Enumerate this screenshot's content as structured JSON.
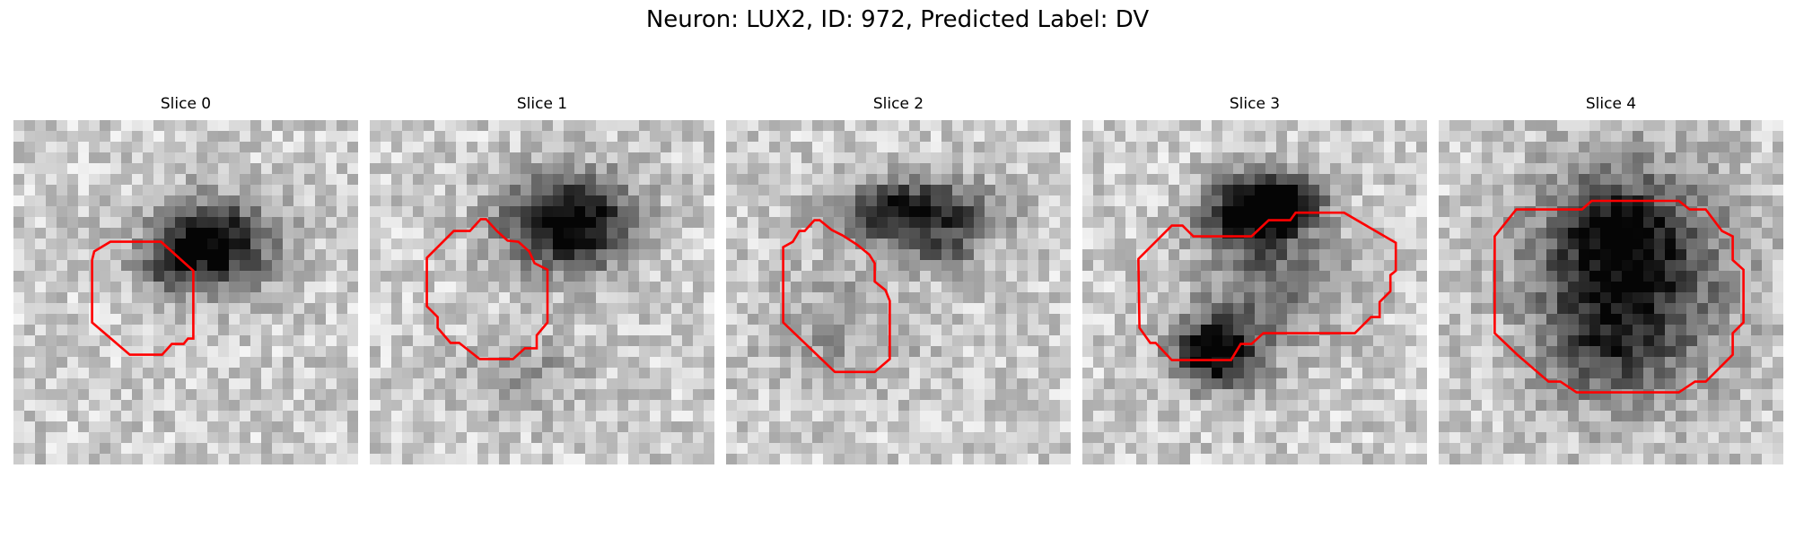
{
  "figure": {
    "title": "Neuron: LUX2, ID: 972, Predicted Label: DV"
  },
  "panels": [
    {
      "title": "Slice 0"
    },
    {
      "title": "Slice 1"
    },
    {
      "title": "Slice 2"
    },
    {
      "title": "Slice 3"
    },
    {
      "title": "Slice 4"
    }
  ],
  "colors": {
    "outline": "#ff0000",
    "background": "#ffffff"
  }
}
